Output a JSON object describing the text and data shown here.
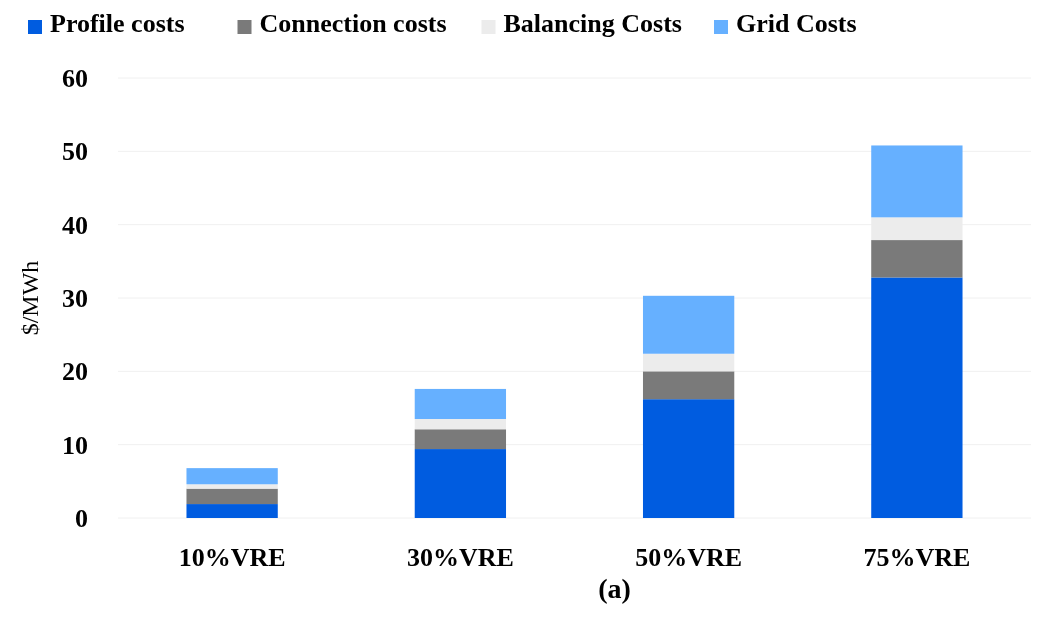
{
  "chart_data": {
    "type": "bar",
    "stacked": true,
    "ylabel": "$/MWh",
    "categories": [
      "10%VRE",
      "30%VRE",
      "50%VRE",
      "75%VRE"
    ],
    "series": [
      {
        "name": "Profile costs",
        "color": "#005ce0",
        "values": [
          1.9,
          9.4,
          16.2,
          32.8
        ]
      },
      {
        "name": "Connection costs",
        "color": "#7a7a7a",
        "values": [
          2.1,
          2.7,
          3.8,
          5.1
        ]
      },
      {
        "name": "Balancing Costs",
        "color": "#ececec",
        "values": [
          0.6,
          1.4,
          2.4,
          3.1
        ]
      },
      {
        "name": "Grid Costs",
        "color": "#66b0ff",
        "values": [
          2.2,
          4.1,
          7.9,
          9.8
        ]
      }
    ],
    "ylim": [
      0,
      60
    ],
    "yticks": [
      0,
      10,
      20,
      30,
      40,
      50,
      60
    ],
    "grid": "y",
    "legend": "top",
    "annotations": [
      "(a)"
    ]
  }
}
